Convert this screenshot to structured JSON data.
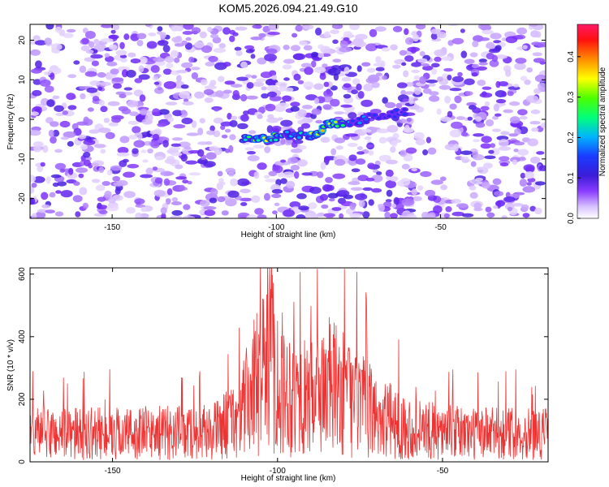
{
  "title": "KOM5.2026.094.21.49.G10",
  "chart_data": [
    {
      "type": "heatmap",
      "xlabel": "Height of straight line (km)",
      "ylabel": "Frequency (Hz)",
      "xlim": [
        -175,
        -18
      ],
      "ylim": [
        -25,
        24
      ],
      "x_ticks": [
        -150,
        -100,
        -50
      ],
      "y_ticks": [
        -20,
        -10,
        0,
        10,
        20
      ],
      "colorbar": {
        "label": "Normalized spectral amplitude",
        "range": [
          0,
          0.48
        ],
        "ticks": [
          0.0,
          0.1,
          0.2,
          0.3,
          0.4
        ],
        "colormap": [
          "#ffffff",
          "#c9a8ff",
          "#7a2cff",
          "#3c1cd8",
          "#1a3bff",
          "#00b4ff",
          "#00ff7a",
          "#4cff00",
          "#ffff00",
          "#ff8c00",
          "#ff1010",
          "#ff1a66"
        ]
      },
      "feature": {
        "description_points": [
          {
            "height": -110,
            "freq": -5,
            "amp": 0.25
          },
          {
            "height": -104,
            "freq": -5,
            "amp": 0.42
          },
          {
            "height": -97,
            "freq": -4,
            "amp": 0.25
          },
          {
            "height": -88,
            "freq": -4,
            "amp": 0.38
          },
          {
            "height": -84,
            "freq": -1,
            "amp": 0.4
          },
          {
            "height": -79,
            "freq": -1,
            "amp": 0.28
          },
          {
            "height": -68,
            "freq": 1,
            "amp": 0.2
          },
          {
            "height": -60,
            "freq": 2,
            "amp": 0.18
          }
        ]
      }
    },
    {
      "type": "line",
      "xlabel": "Height of straight line (km)",
      "ylabel": "SNR (10 * v/v)",
      "xlim": [
        -175,
        -18
      ],
      "ylim": [
        0,
        620
      ],
      "x_ticks": [
        -150,
        -100,
        -50
      ],
      "y_ticks": [
        0,
        200,
        400,
        600
      ],
      "color": "#ee3333",
      "envelope": {
        "height": [
          -175,
          -150,
          -120,
          -112,
          -108,
          -105,
          -102,
          -100,
          -95,
          -90,
          -85,
          -80,
          -75,
          -70,
          -60,
          -50,
          -40,
          -18
        ],
        "snr": [
          110,
          110,
          115,
          170,
          260,
          370,
          500,
          320,
          260,
          240,
          300,
          260,
          220,
          180,
          130,
          115,
          110,
          110
        ]
      }
    }
  ]
}
